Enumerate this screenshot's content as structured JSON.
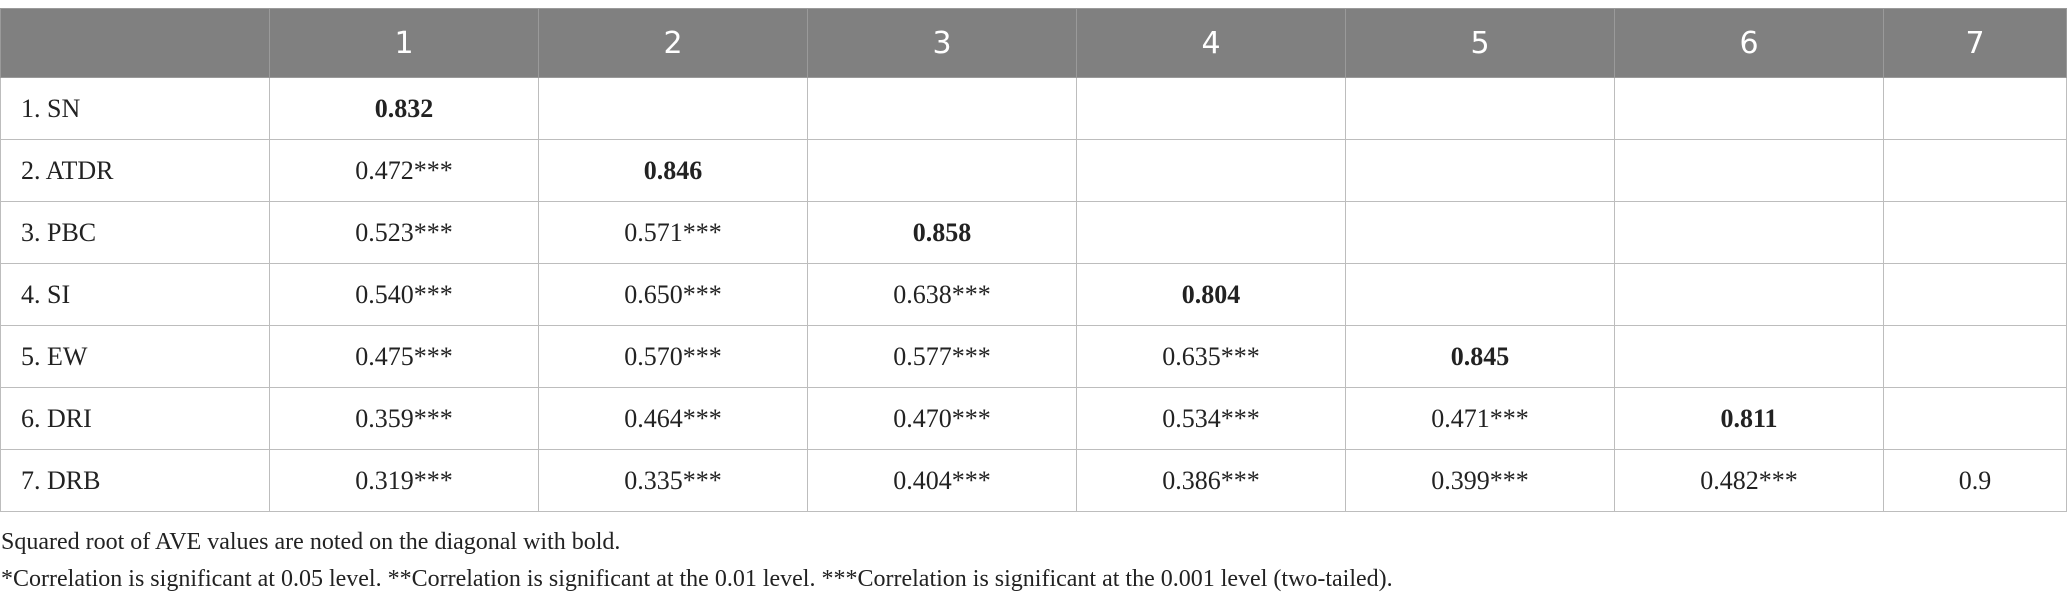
{
  "table": {
    "header": [
      null,
      "1",
      "2",
      "3",
      "4",
      "5",
      "6",
      "7"
    ],
    "rows": [
      [
        {
          "text": "1. SN"
        },
        {
          "text": "0.832",
          "bold": true
        },
        null,
        null,
        null,
        null,
        null,
        null
      ],
      [
        {
          "text": "2. ATDR"
        },
        {
          "text": "0.472***"
        },
        {
          "text": "0.846",
          "bold": true
        },
        null,
        null,
        null,
        null,
        null
      ],
      [
        {
          "text": "3. PBC"
        },
        {
          "text": "0.523***"
        },
        {
          "text": "0.571***"
        },
        {
          "text": "0.858",
          "bold": true
        },
        null,
        null,
        null,
        null
      ],
      [
        {
          "text": "4. SI"
        },
        {
          "text": "0.540***"
        },
        {
          "text": "0.650***"
        },
        {
          "text": "0.638***"
        },
        {
          "text": "0.804",
          "bold": true
        },
        null,
        null,
        null
      ],
      [
        {
          "text": "5. EW"
        },
        {
          "text": "0.475***"
        },
        {
          "text": "0.570***"
        },
        {
          "text": "0.577***"
        },
        {
          "text": "0.635***"
        },
        {
          "text": "0.845",
          "bold": true
        },
        null,
        null
      ],
      [
        {
          "text": "6. DRI"
        },
        {
          "text": "0.359***"
        },
        {
          "text": "0.464***"
        },
        {
          "text": "0.470***"
        },
        {
          "text": "0.534***"
        },
        {
          "text": "0.471***"
        },
        {
          "text": "0.811",
          "bold": true
        },
        null
      ],
      [
        {
          "text": "7. DRB"
        },
        {
          "text": "0.319***"
        },
        {
          "text": "0.335***"
        },
        {
          "text": "0.404***"
        },
        {
          "text": "0.386***"
        },
        {
          "text": "0.399***"
        },
        {
          "text": "0.482***"
        },
        {
          "text": "0.9"
        }
      ]
    ]
  },
  "notes": [
    "Squared root of AVE values are noted on the diagonal with bold.",
    "*Correlation is significant at 0.05 level. **Correlation is significant at the 0.01 level. ***Correlation is significant at the 0.001 level (two-tailed)."
  ]
}
